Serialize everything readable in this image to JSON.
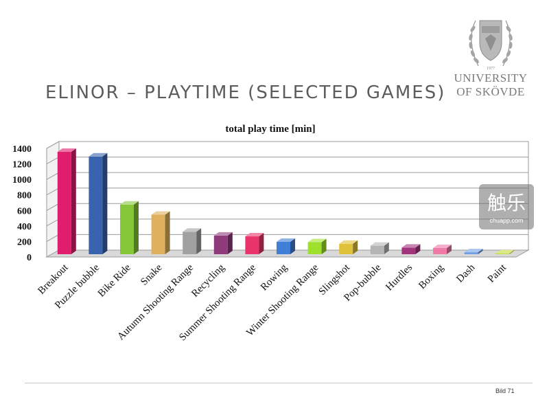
{
  "slide": {
    "title": "ELINOR – PLAYTIME (SELECTED GAMES)",
    "slide_number": "Bild 71"
  },
  "logo": {
    "year": "1977",
    "line1": "UNIVERSITY",
    "line2": "OF SKÖVDE"
  },
  "watermark": {
    "main": "触乐",
    "sub": "chuapp.com"
  },
  "chart_data": {
    "type": "bar",
    "title": "total play time [min]",
    "xlabel": "",
    "ylabel": "",
    "ylim": [
      0,
      1400
    ],
    "yticks": [
      "0",
      "200",
      "400",
      "600",
      "800",
      "1000",
      "1200",
      "1400"
    ],
    "grid": true,
    "legend": "none",
    "style": "3d",
    "categories": [
      "Breakout",
      "Puzzle bubble",
      "Bike Ride",
      "Snake",
      "Autumn Shooting Range",
      "Recycling",
      "Summer Shooting Range",
      "Rowing",
      "Winter Shooting Range",
      "Slingshot",
      "Pop-bubble",
      "Hurdles",
      "Boxing",
      "Dash",
      "Paint"
    ],
    "values": [
      1320,
      1260,
      640,
      510,
      290,
      240,
      230,
      160,
      155,
      135,
      110,
      85,
      80,
      25,
      10
    ],
    "colors": [
      "#e01e6e",
      "#3a63ad",
      "#86c73a",
      "#dfb15c",
      "#a1a1a1",
      "#8f3a7a",
      "#e8336b",
      "#3f7fd8",
      "#9ee12c",
      "#dfc13a",
      "#b5b5b5",
      "#a2337d",
      "#f07aa8",
      "#6f9ee6",
      "#c7da3a"
    ]
  }
}
